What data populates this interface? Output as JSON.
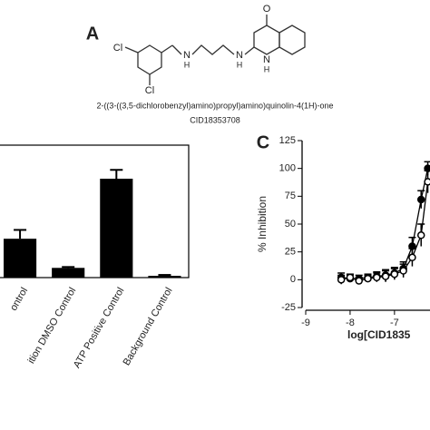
{
  "panel_a": {
    "label": "A",
    "atoms": [
      "Cl",
      "Cl",
      "N",
      "H",
      "N",
      "H",
      "N",
      "H",
      "O"
    ],
    "name": "2-((3-((3,5-dichlorobenzyl)amino)propyl)amino)quinolin-4(1H)-one",
    "cid": "CID18353708"
  },
  "chart_data": [
    {
      "type": "bar",
      "categories": [
        "ontrol",
        "ition DMSO Control",
        "ATP Positive Control",
        "Background Control"
      ],
      "values": [
        44,
        11,
        112,
        2
      ],
      "errors": [
        10,
        1,
        10,
        1
      ],
      "color": "#000000",
      "ylim": [
        0,
        150
      ]
    },
    {
      "type": "line",
      "label": "C",
      "ylabel": "% Inhibition",
      "xlabel": "log[CID1835",
      "xlim": [
        -9,
        -6.2
      ],
      "xticks": [
        -9,
        -8,
        -7
      ],
      "ylim": [
        -25,
        125
      ],
      "yticks": [
        -25,
        0,
        25,
        50,
        75,
        100,
        125
      ],
      "series": [
        {
          "color": "#000000",
          "marker": "filled",
          "x": [
            -8.2,
            -8.0,
            -7.8,
            -7.6,
            -7.4,
            -7.2,
            -7.0,
            -6.8,
            -6.6,
            -6.4,
            -6.25
          ],
          "values": [
            2,
            1,
            1,
            2,
            3,
            4,
            6,
            10,
            30,
            72,
            100
          ],
          "errors": [
            4,
            3,
            3,
            3,
            4,
            5,
            5,
            6,
            8,
            8,
            6
          ]
        },
        {
          "color": "#000000",
          "marker": "open",
          "x": [
            -8.2,
            -8.0,
            -7.8,
            -7.6,
            -7.4,
            -7.2,
            -7.0,
            -6.8,
            -6.6,
            -6.4,
            -6.25
          ],
          "values": [
            0,
            2,
            -1,
            1,
            2,
            3,
            5,
            8,
            20,
            40,
            88
          ],
          "errors": [
            4,
            3,
            3,
            3,
            4,
            5,
            5,
            6,
            8,
            10,
            10
          ]
        }
      ]
    }
  ]
}
